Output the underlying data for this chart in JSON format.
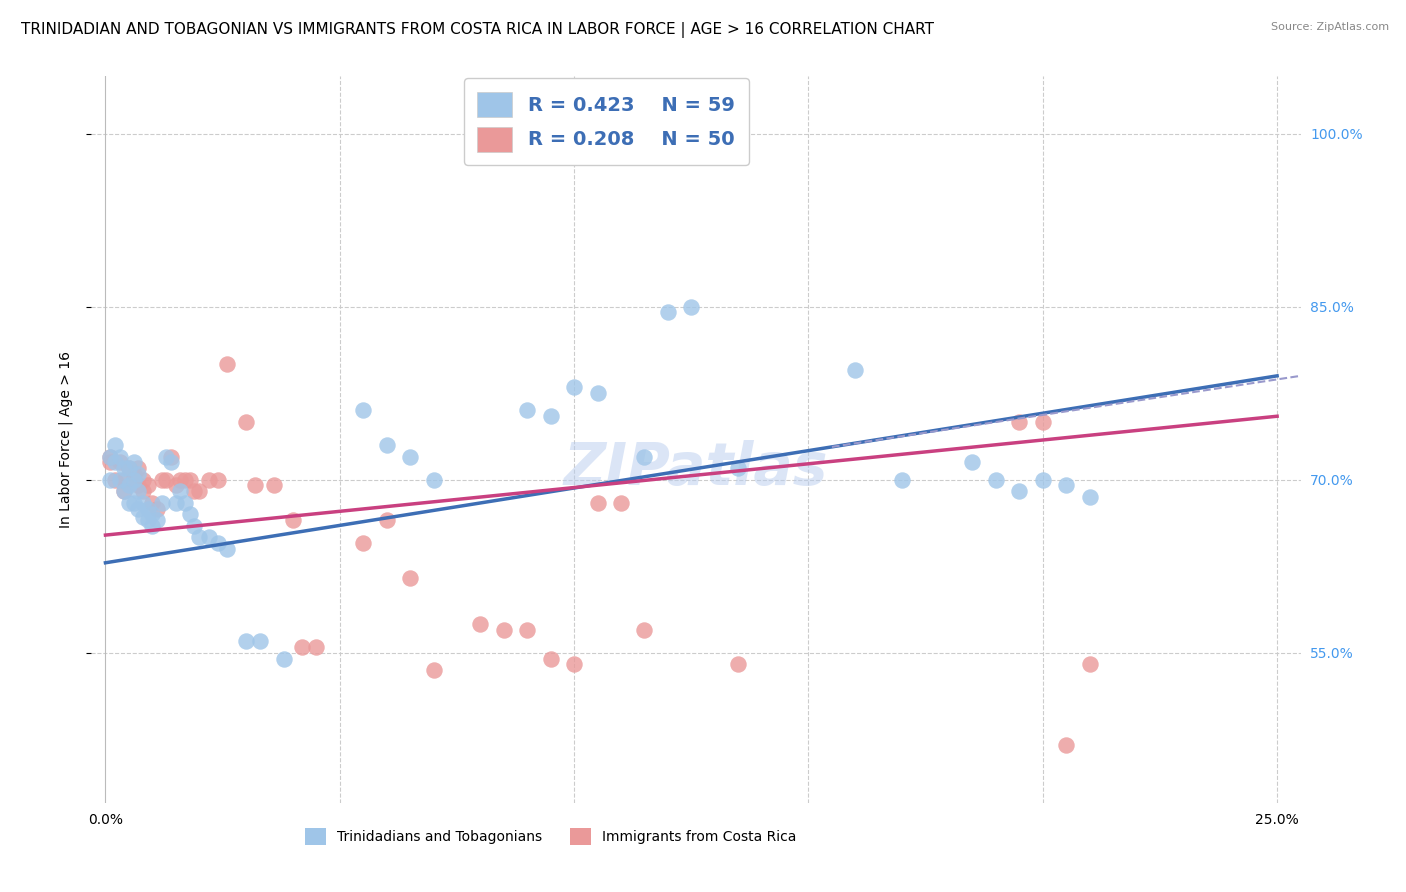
{
  "title": "TRINIDADIAN AND TOBAGONIAN VS IMMIGRANTS FROM COSTA RICA IN LABOR FORCE | AGE > 16 CORRELATION CHART",
  "source": "Source: ZipAtlas.com",
  "xlabel": "",
  "ylabel": "In Labor Force | Age > 16",
  "xlim": [
    -0.003,
    0.255
  ],
  "ylim": [
    0.42,
    1.05
  ],
  "yticks": [
    0.55,
    0.7,
    0.85,
    1.0
  ],
  "ytick_labels": [
    "55.0%",
    "70.0%",
    "85.0%",
    "100.0%"
  ],
  "xticks": [
    0.0,
    0.05,
    0.1,
    0.15,
    0.2,
    0.25
  ],
  "xtick_labels": [
    "0.0%",
    "",
    "",
    "",
    "",
    "25.0%"
  ],
  "blue_color": "#9fc5e8",
  "pink_color": "#ea9999",
  "blue_line_color": "#3d6eb5",
  "pink_line_color": "#c94080",
  "dashed_line_color": "#9999cc",
  "watermark": "ZIPatlas",
  "legend_r1": "R = 0.423",
  "legend_n1": "N = 59",
  "legend_r2": "R = 0.208",
  "legend_n2": "N = 50",
  "legend_label1": "Trinidadians and Tobagonians",
  "legend_label2": "Immigrants from Costa Rica",
  "blue_scatter_x": [
    0.001,
    0.001,
    0.002,
    0.002,
    0.003,
    0.003,
    0.004,
    0.004,
    0.005,
    0.005,
    0.005,
    0.006,
    0.006,
    0.006,
    0.007,
    0.007,
    0.007,
    0.008,
    0.008,
    0.009,
    0.009,
    0.01,
    0.01,
    0.011,
    0.012,
    0.013,
    0.014,
    0.015,
    0.016,
    0.017,
    0.018,
    0.019,
    0.02,
    0.022,
    0.024,
    0.026,
    0.03,
    0.033,
    0.038,
    0.055,
    0.06,
    0.065,
    0.07,
    0.09,
    0.095,
    0.1,
    0.105,
    0.115,
    0.12,
    0.125,
    0.135,
    0.16,
    0.17,
    0.185,
    0.19,
    0.195,
    0.2,
    0.205,
    0.21
  ],
  "blue_scatter_y": [
    0.7,
    0.72,
    0.715,
    0.73,
    0.7,
    0.72,
    0.69,
    0.71,
    0.68,
    0.695,
    0.71,
    0.68,
    0.7,
    0.715,
    0.675,
    0.69,
    0.705,
    0.668,
    0.68,
    0.665,
    0.675,
    0.66,
    0.67,
    0.665,
    0.68,
    0.72,
    0.715,
    0.68,
    0.69,
    0.68,
    0.67,
    0.66,
    0.65,
    0.65,
    0.645,
    0.64,
    0.56,
    0.56,
    0.545,
    0.76,
    0.73,
    0.72,
    0.7,
    0.76,
    0.755,
    0.78,
    0.775,
    0.72,
    0.845,
    0.85,
    0.71,
    0.795,
    0.7,
    0.715,
    0.7,
    0.69,
    0.7,
    0.695,
    0.685
  ],
  "pink_scatter_x": [
    0.001,
    0.001,
    0.002,
    0.003,
    0.004,
    0.004,
    0.005,
    0.006,
    0.007,
    0.007,
    0.008,
    0.008,
    0.009,
    0.01,
    0.011,
    0.012,
    0.013,
    0.014,
    0.015,
    0.016,
    0.017,
    0.018,
    0.019,
    0.02,
    0.022,
    0.024,
    0.026,
    0.03,
    0.032,
    0.036,
    0.04,
    0.042,
    0.045,
    0.055,
    0.06,
    0.065,
    0.07,
    0.08,
    0.085,
    0.09,
    0.095,
    0.1,
    0.105,
    0.11,
    0.115,
    0.135,
    0.195,
    0.2,
    0.205,
    0.21
  ],
  "pink_scatter_y": [
    0.72,
    0.715,
    0.7,
    0.715,
    0.69,
    0.7,
    0.71,
    0.705,
    0.695,
    0.71,
    0.69,
    0.7,
    0.695,
    0.68,
    0.675,
    0.7,
    0.7,
    0.72,
    0.695,
    0.7,
    0.7,
    0.7,
    0.69,
    0.69,
    0.7,
    0.7,
    0.8,
    0.75,
    0.695,
    0.695,
    0.665,
    0.555,
    0.555,
    0.645,
    0.665,
    0.615,
    0.535,
    0.575,
    0.57,
    0.57,
    0.545,
    0.54,
    0.68,
    0.68,
    0.57,
    0.54,
    0.75,
    0.75,
    0.47,
    0.54
  ],
  "blue_trend_x": [
    0.0,
    0.25
  ],
  "blue_trend_y": [
    0.628,
    0.79
  ],
  "pink_trend_x": [
    0.0,
    0.25
  ],
  "pink_trend_y": [
    0.652,
    0.755
  ],
  "dashed_trend_x": [
    0.0,
    0.25
  ],
  "dashed_trend_y": [
    0.628,
    0.79
  ],
  "background_color": "#ffffff",
  "grid_color": "#cccccc",
  "title_fontsize": 11,
  "axis_label_fontsize": 10,
  "tick_fontsize": 10,
  "right_tick_color": "#4499ee"
}
